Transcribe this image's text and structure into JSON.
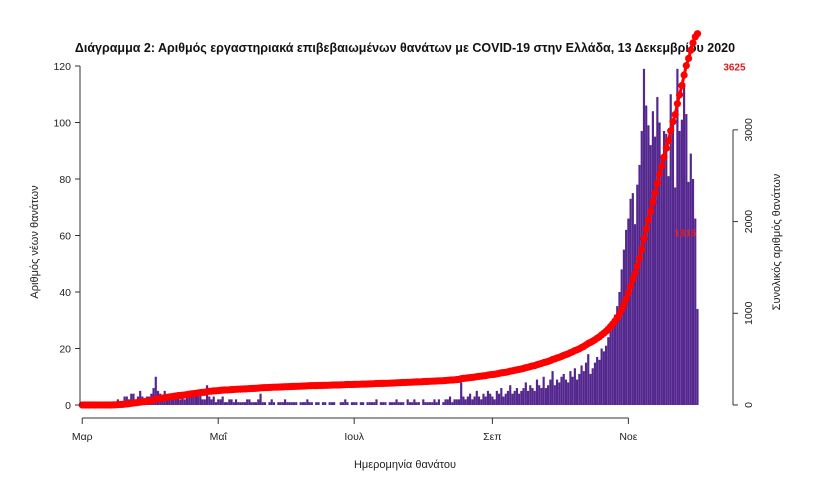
{
  "chart_data": {
    "type": "bar+line",
    "title": "Διάγραμμα 2: Αριθμός εργαστηριακά επιβεβαιωμένων θανάτων με COVID-19 στην Ελλάδα, 13 Δεκεμβρίου 2020",
    "xlabel": "Ημερομηνία θανάτου",
    "ylabel_left": "Αριθμός νέων θανάτων",
    "ylabel_right": "Συνολικός αριθμός θανάτων",
    "x_ticks": [
      {
        "label": "Μαρ",
        "day": 0
      },
      {
        "label": "Μαΐ",
        "day": 61
      },
      {
        "label": "Ιουλ",
        "day": 122
      },
      {
        "label": "Σεπ",
        "day": 184
      },
      {
        "label": "Νοε",
        "day": 245
      }
    ],
    "x_range": [
      -1,
      287
    ],
    "ylim_left": [
      0,
      120
    ],
    "y_ticks_left": [
      0,
      20,
      40,
      60,
      80,
      100,
      120
    ],
    "ylim_right": [
      0,
      3696
    ],
    "y_ticks_right": [
      0,
      1000,
      2000,
      3000
    ],
    "series": [
      {
        "type": "bar",
        "color": "#54278f",
        "values": [
          0,
          0,
          0,
          0,
          0,
          0,
          0,
          0,
          0,
          0,
          0,
          0,
          0,
          0,
          1,
          1,
          2,
          1,
          1,
          3,
          3,
          2,
          4,
          4,
          2,
          3,
          5,
          3,
          2,
          3,
          3,
          4,
          6,
          10,
          5,
          4,
          3,
          5,
          3,
          4,
          4,
          4,
          3,
          4,
          2,
          3,
          2,
          4,
          5,
          3,
          3,
          4,
          3,
          4,
          2,
          2,
          7,
          3,
          2,
          3,
          1,
          2,
          2,
          3,
          1,
          1,
          2,
          2,
          1,
          2,
          1,
          1,
          1,
          1,
          2,
          2,
          1,
          1,
          1,
          2,
          4,
          1,
          1,
          0,
          1,
          2,
          1,
          0,
          1,
          1,
          1,
          2,
          1,
          1,
          1,
          1,
          1,
          0,
          1,
          1,
          1,
          2,
          1,
          1,
          0,
          1,
          1,
          0,
          1,
          1,
          0,
          1,
          1,
          1,
          0,
          0,
          1,
          1,
          2,
          1,
          0,
          1,
          1,
          1,
          0,
          1,
          1,
          0,
          1,
          1,
          1,
          1,
          2,
          0,
          1,
          1,
          1,
          0,
          1,
          1,
          1,
          2,
          1,
          1,
          1,
          0,
          2,
          1,
          1,
          2,
          1,
          1,
          0,
          2,
          1,
          1,
          1,
          1,
          2,
          1,
          2,
          0,
          1,
          2,
          2,
          3,
          1,
          2,
          2,
          2,
          8,
          3,
          2,
          3,
          4,
          2,
          3,
          5,
          3,
          2,
          4,
          3,
          5,
          4,
          3,
          2,
          5,
          4,
          6,
          3,
          4,
          5,
          7,
          4,
          5,
          6,
          4,
          5,
          6,
          8,
          5,
          7,
          6,
          5,
          9,
          7,
          6,
          10,
          6,
          7,
          9,
          12,
          7,
          9,
          8,
          10,
          11,
          9,
          8,
          12,
          10,
          13,
          9,
          11,
          14,
          12,
          15,
          18,
          11,
          13,
          15,
          17,
          16,
          20,
          19,
          21,
          24,
          27,
          29,
          32,
          35,
          40,
          48,
          55,
          62,
          66,
          73,
          75,
          64,
          78,
          85,
          97,
          119,
          106,
          99,
          92,
          104,
          95,
          109,
          100,
          88,
          97,
          96,
          81,
          110,
          99,
          77,
          119,
          97,
          101,
          114,
          103,
          79,
          89,
          80,
          66,
          34
        ]
      },
      {
        "type": "line",
        "color": "#ff0000",
        "axis": "right",
        "name": "cumulative"
      }
    ],
    "annotations": [
      {
        "text": "3625",
        "day": 284,
        "value": 3625
      },
      {
        "text": "1815",
        "day": 262,
        "value": 1815
      }
    ]
  }
}
